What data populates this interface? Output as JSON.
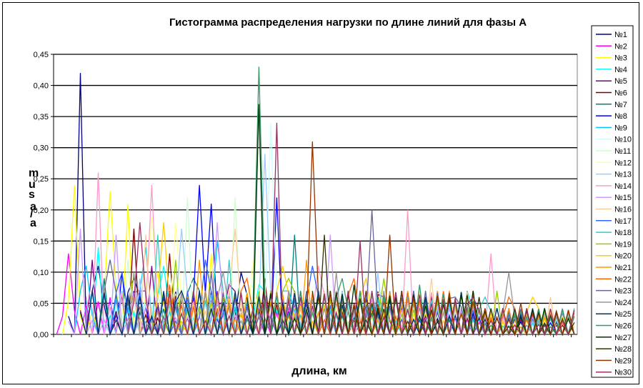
{
  "chart_data": {
    "type": "line",
    "title": "Гистограмма распределения нагрузки по длине линий для фазы А",
    "xlabel": "длина, км",
    "ylabel": "",
    "ylabel_fragments": [
      "m",
      "u",
      "s",
      "a",
      "/",
      "a"
    ],
    "ylim": [
      0,
      0.45
    ],
    "yticks": [
      "0,00",
      "0,05",
      "0,10",
      "0,15",
      "0,20",
      "0,25",
      "0,30",
      "0,35",
      "0,40",
      "0,45"
    ],
    "grid": true,
    "legend_position": "right",
    "bins": 88,
    "colors": [
      "#000080",
      "#FF00FF",
      "#FFFF00",
      "#00FFFF",
      "#800080",
      "#800000",
      "#008080",
      "#0000FF",
      "#00CCFF",
      "#CCFFFF",
      "#CCFFCC",
      "#FFFF99",
      "#99CCFF",
      "#FF99CC",
      "#CC99FF",
      "#FFCC99",
      "#3366FF",
      "#33CCCC",
      "#99CC00",
      "#FFCC00",
      "#FF9900",
      "#FF6600",
      "#666699",
      "#969696",
      "#003366",
      "#339966",
      "#003300",
      "#333300",
      "#993300",
      "#993366"
    ],
    "series": [
      {
        "name": "№1",
        "peaks": [
          [
            4,
            0.42
          ],
          [
            7,
            0.11
          ],
          [
            13,
            0.09
          ],
          [
            31,
            0.1
          ]
        ]
      },
      {
        "name": "№2",
        "peaks": [
          [
            2,
            0.13
          ],
          [
            14,
            0.07
          ],
          [
            28,
            0.05
          ]
        ]
      },
      {
        "name": "№3",
        "peaks": [
          [
            3,
            0.24
          ],
          [
            9,
            0.23
          ],
          [
            12,
            0.21
          ],
          [
            17,
            0.1
          ],
          [
            26,
            0.13
          ]
        ]
      },
      {
        "name": "№4",
        "peaks": [
          [
            7,
            0.14
          ],
          [
            18,
            0.11
          ],
          [
            34,
            0.08
          ],
          [
            70,
            0.04
          ]
        ]
      },
      {
        "name": "№5",
        "peaks": [
          [
            6,
            0.12
          ],
          [
            16,
            0.11
          ],
          [
            29,
            0.08
          ],
          [
            55,
            0.06
          ]
        ]
      },
      {
        "name": "№6",
        "peaks": [
          [
            13,
            0.17
          ],
          [
            19,
            0.13
          ],
          [
            35,
            0.09
          ]
        ]
      },
      {
        "name": "№7",
        "peaks": [
          [
            8,
            0.09
          ],
          [
            23,
            0.09
          ],
          [
            40,
            0.16
          ],
          [
            60,
            0.05
          ]
        ]
      },
      {
        "name": "№8",
        "peaks": [
          [
            11,
            0.1
          ],
          [
            24,
            0.24
          ],
          [
            26,
            0.21
          ],
          [
            37,
            0.22
          ],
          [
            49,
            0.07
          ]
        ]
      },
      {
        "name": "№9",
        "peaks": [
          [
            5,
            0.11
          ],
          [
            15,
            0.14
          ],
          [
            27,
            0.15
          ],
          [
            39,
            0.07
          ]
        ]
      },
      {
        "name": "№10",
        "peaks": [
          [
            10,
            0.09
          ],
          [
            36,
            0.34
          ],
          [
            58,
            0.05
          ]
        ]
      },
      {
        "name": "№11",
        "peaks": [
          [
            12,
            0.12
          ],
          [
            22,
            0.22
          ],
          [
            30,
            0.22
          ],
          [
            52,
            0.07
          ]
        ]
      },
      {
        "name": "№12",
        "peaks": [
          [
            16,
            0.19
          ],
          [
            20,
            0.18
          ],
          [
            33,
            0.12
          ],
          [
            59,
            0.06
          ]
        ]
      },
      {
        "name": "№13",
        "peaks": [
          [
            14,
            0.09
          ],
          [
            21,
            0.17
          ],
          [
            35,
            0.29
          ],
          [
            54,
            0.1
          ]
        ]
      },
      {
        "name": "№14",
        "peaks": [
          [
            7,
            0.26
          ],
          [
            16,
            0.24
          ],
          [
            44,
            0.11
          ],
          [
            59,
            0.2
          ],
          [
            73,
            0.13
          ]
        ]
      },
      {
        "name": "№15",
        "peaks": [
          [
            4,
            0.17
          ],
          [
            10,
            0.16
          ],
          [
            27,
            0.18
          ],
          [
            46,
            0.16
          ]
        ]
      },
      {
        "name": "№16",
        "peaks": [
          [
            15,
            0.16
          ],
          [
            30,
            0.17
          ],
          [
            63,
            0.09
          ],
          [
            83,
            0.06
          ]
        ]
      },
      {
        "name": "№17",
        "peaks": [
          [
            11,
            0.1
          ],
          [
            25,
            0.12
          ],
          [
            43,
            0.11
          ]
        ]
      },
      {
        "name": "№18",
        "peaks": [
          [
            17,
            0.16
          ],
          [
            29,
            0.12
          ],
          [
            72,
            0.06
          ]
        ]
      },
      {
        "name": "№19",
        "peaks": [
          [
            20,
            0.12
          ],
          [
            39,
            0.09
          ],
          [
            55,
            0.09
          ],
          [
            74,
            0.07
          ]
        ]
      },
      {
        "name": "№20",
        "peaks": [
          [
            18,
            0.18
          ],
          [
            38,
            0.11
          ],
          [
            52,
            0.09
          ],
          [
            80,
            0.06
          ]
        ]
      },
      {
        "name": "№21",
        "peaks": [
          [
            24,
            0.12
          ],
          [
            42,
            0.12
          ],
          [
            64,
            0.07
          ]
        ]
      },
      {
        "name": "№22",
        "peaks": [
          [
            19,
            0.08
          ],
          [
            32,
            0.09
          ],
          [
            50,
            0.09
          ],
          [
            76,
            0.06
          ]
        ]
      },
      {
        "name": "№23",
        "peaks": [
          [
            9,
            0.12
          ],
          [
            26,
            0.1
          ],
          [
            53,
            0.2
          ],
          [
            67,
            0.06
          ]
        ]
      },
      {
        "name": "№24",
        "peaks": [
          [
            13,
            0.1
          ],
          [
            28,
            0.1
          ],
          [
            47,
            0.1
          ],
          [
            76,
            0.1
          ]
        ]
      },
      {
        "name": "№25",
        "peaks": [
          [
            6,
            0.07
          ],
          [
            21,
            0.07
          ],
          [
            44,
            0.07
          ],
          [
            62,
            0.06
          ]
        ]
      },
      {
        "name": "№26",
        "peaks": [
          [
            34,
            0.43
          ],
          [
            48,
            0.09
          ],
          [
            61,
            0.08
          ]
        ]
      },
      {
        "name": "№27",
        "peaks": [
          [
            34,
            0.37
          ],
          [
            50,
            0.08
          ],
          [
            66,
            0.06
          ]
        ]
      },
      {
        "name": "№28",
        "peaks": [
          [
            45,
            0.16
          ],
          [
            57,
            0.06
          ],
          [
            71,
            0.06
          ]
        ]
      },
      {
        "name": "№29",
        "peaks": [
          [
            43,
            0.31
          ],
          [
            56,
            0.16
          ],
          [
            78,
            0.05
          ]
        ]
      },
      {
        "name": "№30",
        "peaks": [
          [
            14,
            0.18
          ],
          [
            37,
            0.34
          ],
          [
            51,
            0.15
          ],
          [
            70,
            0.06
          ]
        ]
      }
    ]
  }
}
